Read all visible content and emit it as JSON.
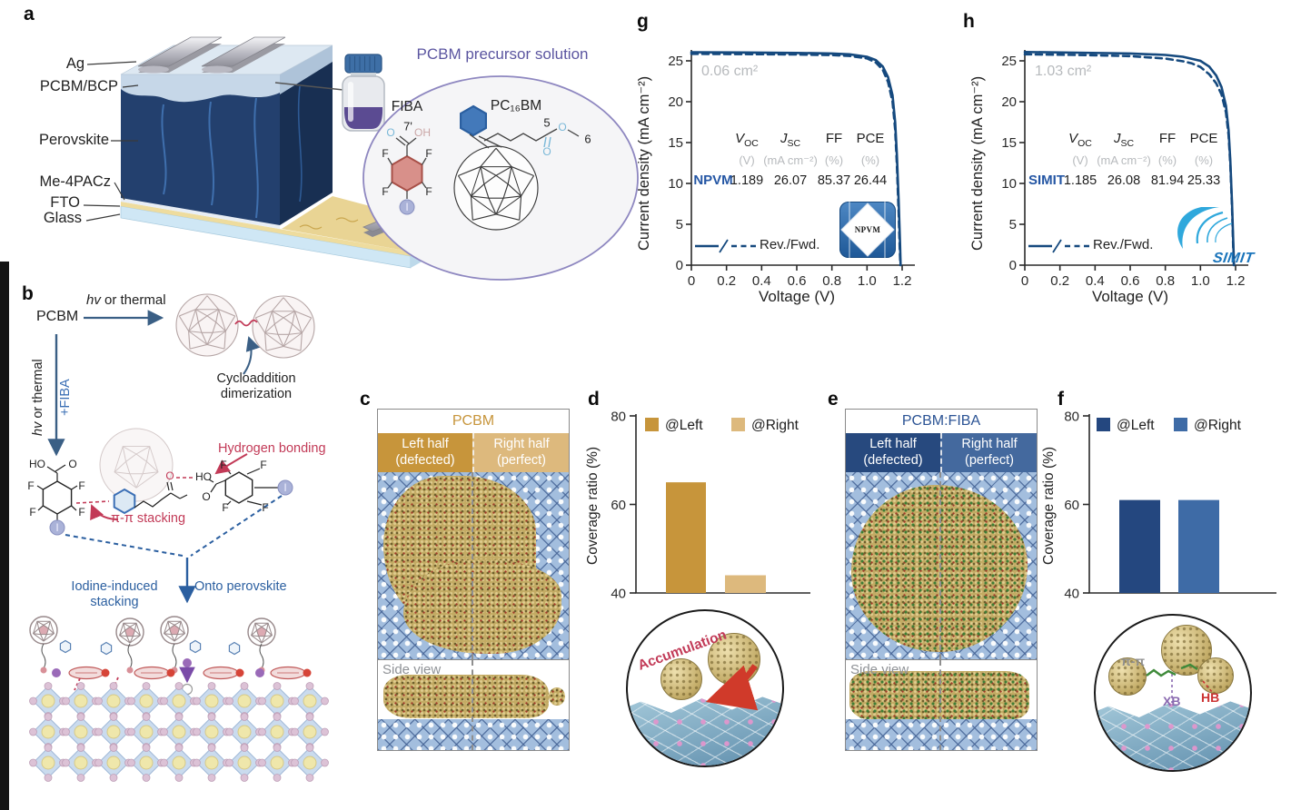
{
  "atoms": {
    "f": "F",
    "i": "I",
    "o": "O",
    "ho": "HO",
    "oh": "OH",
    "n5": "5",
    "n6": "6",
    "n7": "7'"
  },
  "panel_a": {
    "label": "a",
    "layers": [
      "Ag",
      "PCBM/BCP",
      "Perovskite",
      "Me-4PACz",
      "FTO",
      "Glass"
    ],
    "solution_title": "PCBM precursor solution",
    "fiba": "FIBA",
    "pc16bm": "PC₁₆BM"
  },
  "panel_b": {
    "label": "b",
    "pcbm": "PCBM",
    "hv": "hv",
    "or_thermal": " or thermal",
    "plus_fiba": "+FIBA",
    "cycloaddition": "Cycloaddition dimerization",
    "hydrogen_bonding": "Hydrogen bonding",
    "pi_pi_stacking": "π-π stacking",
    "iodine_stacking": "Iodine-induced stacking",
    "onto_perovskite": "Onto perovskite"
  },
  "panel_c": {
    "label": "c",
    "title": "PCBM",
    "left_line1": "Left half",
    "left_line2": "(defected)",
    "right_line1": "Right half",
    "right_line2": "(perfect)",
    "side_view": "Side view"
  },
  "panel_d": {
    "label": "d",
    "inset_caption": "Accumulation"
  },
  "panel_e": {
    "label": "e",
    "title": "PCBM:FIBA",
    "left_line1": "Left half",
    "left_line2": "(defected)",
    "right_line1": "Right half",
    "right_line2": "(perfect)",
    "side_view": "Side view"
  },
  "panel_f": {
    "label": "f",
    "inset_pi": "π-π",
    "inset_xb": "XB",
    "inset_hb": "HB"
  },
  "panel_g": {
    "label": "g"
  },
  "panel_h": {
    "label": "h"
  },
  "jv": {
    "ylabel": "Current density (mA cm⁻²)",
    "xlabel": "Voltage (V)",
    "legend": "Rev./Fwd.",
    "yticks": [
      "0",
      "5",
      "10",
      "15",
      "20",
      "25"
    ],
    "xticks": [
      "0",
      "0.2",
      "0.4",
      "0.6",
      "0.8",
      "1.0",
      "1.2"
    ],
    "params": [
      {
        "sym": "V",
        "sub": "OC"
      },
      {
        "sym": "J",
        "sub": "SC"
      },
      {
        "sym": "FF",
        "sub": ""
      },
      {
        "sym": "PCE",
        "sub": ""
      }
    ],
    "units": [
      "(V)",
      "(mA cm⁻²)",
      "(%)",
      "(%)"
    ]
  },
  "chart_data": [
    {
      "id": "d",
      "type": "bar",
      "ylabel": "Coverage ratio (%)",
      "ylim": [
        40,
        80
      ],
      "yticks": [
        80,
        60,
        40
      ],
      "grid": false,
      "legend_position": "top",
      "series": [
        {
          "name": "@Left",
          "value": 65,
          "color": "#C7953B"
        },
        {
          "name": "@Right",
          "value": 44,
          "color": "#DDB97D"
        }
      ]
    },
    {
      "id": "f",
      "type": "bar",
      "ylabel": "Coverage ratio (%)",
      "ylim": [
        40,
        80
      ],
      "yticks": [
        80,
        60,
        40
      ],
      "grid": false,
      "legend_position": "top",
      "series": [
        {
          "name": "@Left",
          "value": 61,
          "color": "#24477F"
        },
        {
          "name": "@Right",
          "value": 61,
          "color": "#3E6BA6"
        }
      ]
    },
    {
      "id": "g",
      "type": "line",
      "area_label": "0.06 cm²",
      "device": "NPVM",
      "logo_text": "NPVM",
      "xlabel": "Voltage (V)",
      "ylabel": "Current density (mA cm⁻²)",
      "xlim": [
        0,
        1.2
      ],
      "ylim": [
        0,
        27
      ],
      "grid": false,
      "metrics": {
        "voc": "1.189",
        "jsc": "26.07",
        "ff": "85.37",
        "pce": "26.44"
      },
      "series": [
        {
          "name": "Rev.",
          "style": "solid",
          "points": [
            [
              0,
              26.05
            ],
            [
              0.3,
              26.02
            ],
            [
              0.6,
              25.97
            ],
            [
              0.8,
              25.9
            ],
            [
              0.9,
              25.8
            ],
            [
              1.0,
              25.5
            ],
            [
              1.05,
              25.1
            ],
            [
              1.09,
              24.3
            ],
            [
              1.12,
              23.0
            ],
            [
              1.145,
              20.8
            ],
            [
              1.16,
              17.5
            ],
            [
              1.17,
              13.5
            ],
            [
              1.18,
              8.0
            ],
            [
              1.188,
              2.5
            ],
            [
              1.191,
              0
            ]
          ]
        },
        {
          "name": "Fwd.",
          "style": "dashed",
          "points": [
            [
              0,
              25.85
            ],
            [
              0.3,
              25.82
            ],
            [
              0.6,
              25.78
            ],
            [
              0.8,
              25.7
            ],
            [
              0.9,
              25.6
            ],
            [
              1.0,
              25.3
            ],
            [
              1.05,
              24.8
            ],
            [
              1.09,
              23.9
            ],
            [
              1.12,
              22.4
            ],
            [
              1.145,
              20.0
            ],
            [
              1.16,
              16.6
            ],
            [
              1.17,
              12.3
            ],
            [
              1.18,
              6.5
            ],
            [
              1.187,
              1.5
            ],
            [
              1.19,
              0
            ]
          ]
        }
      ]
    },
    {
      "id": "h",
      "type": "line",
      "area_label": "1.03 cm²",
      "device": "SIMIT",
      "logo_text": "SIMIT",
      "xlabel": "Voltage (V)",
      "ylabel": "Current density (mA cm⁻²)",
      "xlim": [
        0,
        1.2
      ],
      "ylim": [
        0,
        27
      ],
      "grid": false,
      "metrics": {
        "voc": "1.185",
        "jsc": "26.08",
        "ff": "81.94",
        "pce": "25.33"
      },
      "series": [
        {
          "name": "Rev.",
          "style": "solid",
          "points": [
            [
              0,
              26.08
            ],
            [
              0.3,
              26.0
            ],
            [
              0.6,
              25.9
            ],
            [
              0.8,
              25.72
            ],
            [
              0.9,
              25.5
            ],
            [
              1.0,
              25.0
            ],
            [
              1.05,
              24.3
            ],
            [
              1.09,
              23.2
            ],
            [
              1.12,
              21.8
            ],
            [
              1.145,
              19.5
            ],
            [
              1.16,
              16.5
            ],
            [
              1.17,
              12.8
            ],
            [
              1.18,
              7.5
            ],
            [
              1.188,
              2.0
            ],
            [
              1.191,
              0
            ]
          ]
        },
        {
          "name": "Fwd.",
          "style": "dashed",
          "points": [
            [
              0,
              25.8
            ],
            [
              0.3,
              25.72
            ],
            [
              0.6,
              25.58
            ],
            [
              0.8,
              25.28
            ],
            [
              0.9,
              24.95
            ],
            [
              0.95,
              24.7
            ],
            [
              1.0,
              24.25
            ],
            [
              1.05,
              23.35
            ],
            [
              1.09,
              22.25
            ],
            [
              1.12,
              20.9
            ],
            [
              1.145,
              18.7
            ],
            [
              1.16,
              15.9
            ],
            [
              1.17,
              12.3
            ],
            [
              1.18,
              7.0
            ],
            [
              1.187,
              1.8
            ],
            [
              1.19,
              0
            ]
          ]
        }
      ]
    }
  ]
}
